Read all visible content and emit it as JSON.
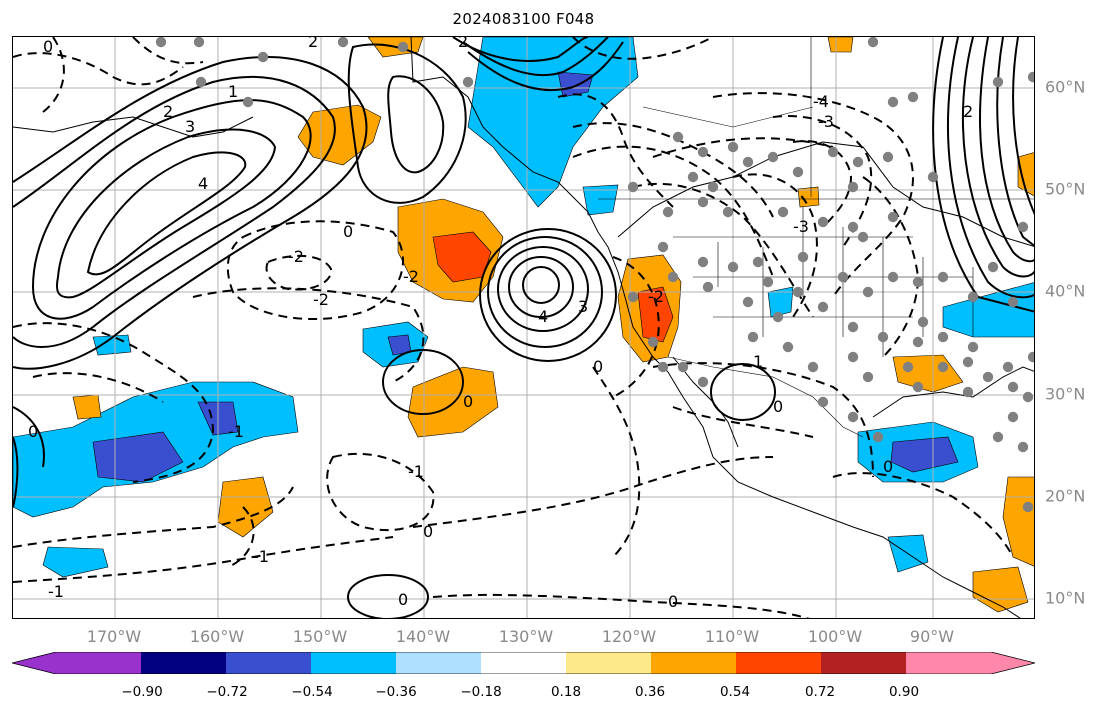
{
  "title": "2024083100 F048",
  "map": {
    "lon_labels": [
      "170°W",
      "160°W",
      "150°W",
      "140°W",
      "130°W",
      "120°W",
      "110°W",
      "100°W",
      "90°W"
    ],
    "lat_labels": [
      "60°N",
      "50°N",
      "40°N",
      "30°N",
      "20°N",
      "10°N"
    ],
    "contour_labels": [
      "0",
      "1",
      "2",
      "3",
      "4",
      "-1",
      "-2",
      "-3"
    ],
    "contour_style": {
      "positive": "solid",
      "negative": "dashed"
    },
    "station_marker_color": "#808080",
    "grid": true
  },
  "colorbar": {
    "tick_labels": [
      "−0.90",
      "−0.72",
      "−0.54",
      "−0.36",
      "−0.18",
      "0.18",
      "0.36",
      "0.54",
      "0.72",
      "0.90"
    ],
    "colors": [
      "#9932cc",
      "#9932cc",
      "#000080",
      "#3a4fcf",
      "#00bfff",
      "#b0e0ff",
      "#ffffff",
      "#fde88a",
      "#ffa500",
      "#ff4500",
      "#b22222",
      "#ff88aa",
      "#ff88aa"
    ],
    "extend": "both"
  }
}
